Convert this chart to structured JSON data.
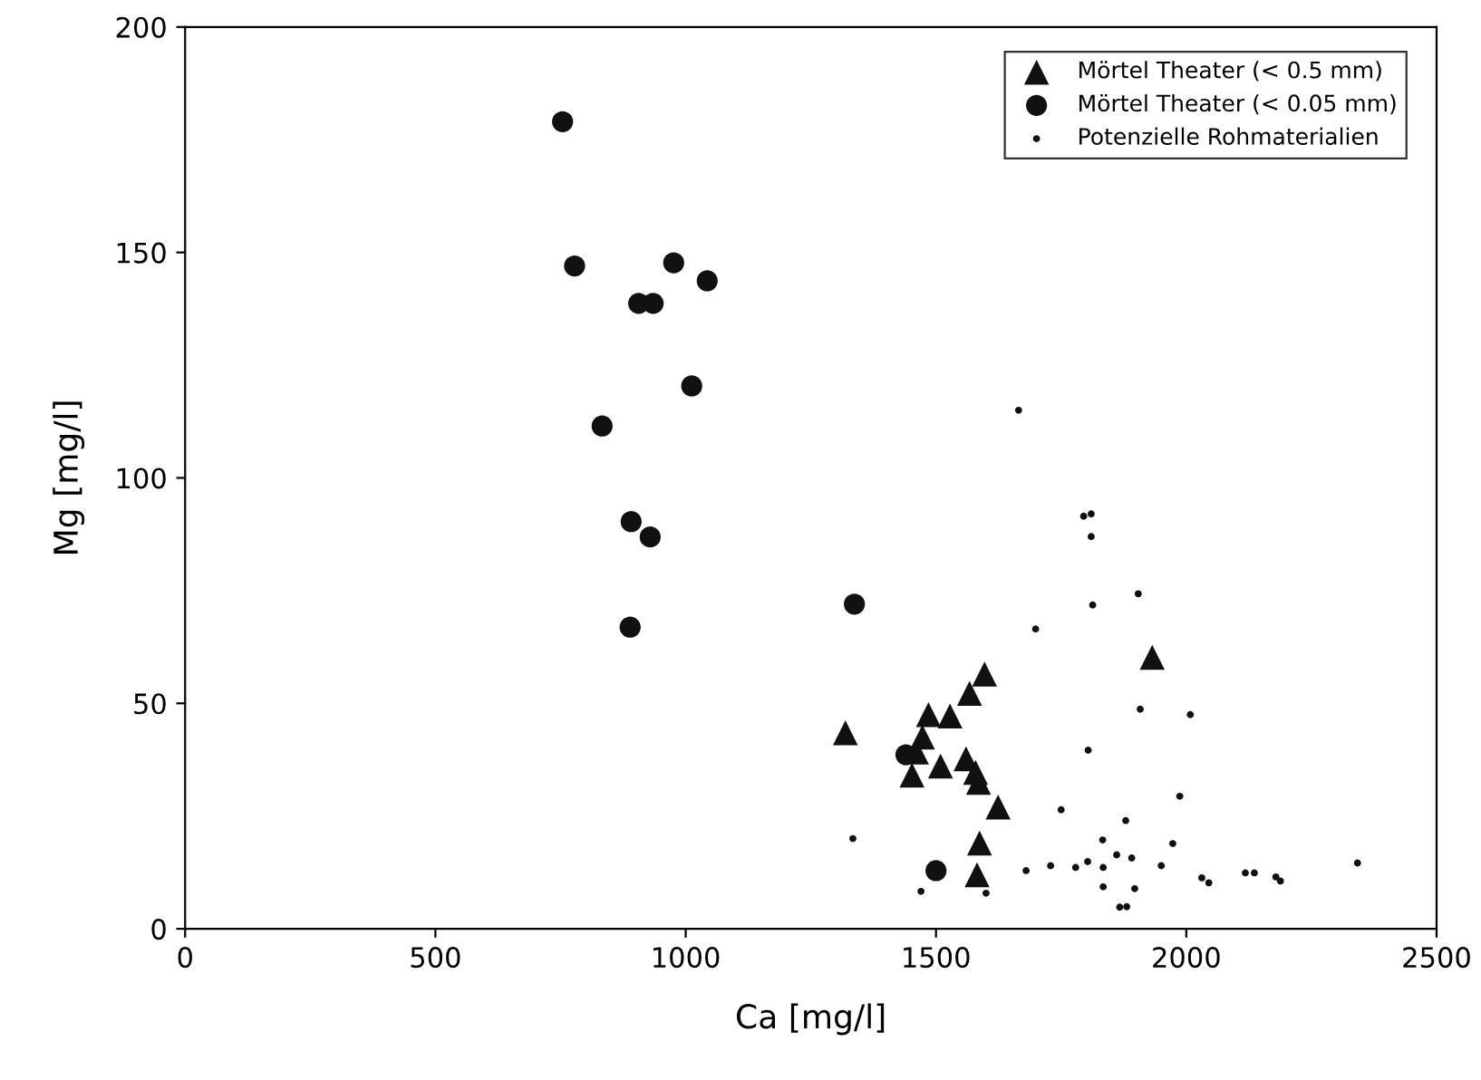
{
  "chart_data": {
    "type": "scatter",
    "xlabel": "Ca [mg/l]",
    "ylabel": "Mg [mg/l]",
    "xlim": [
      0,
      2500
    ],
    "xticks": [
      0,
      500,
      1000,
      1500,
      2000,
      2500
    ],
    "ylim": [
      0,
      200
    ],
    "yticks": [
      0,
      50,
      100,
      150,
      200
    ],
    "grid": false,
    "legend": "top right",
    "series": [
      {
        "name": "Mörtel Theater (< 0.5 mm)",
        "color": "#111111",
        "marker": "triangle",
        "x": [
          1319,
          1597,
          1567,
          1485,
          1528,
          1473,
          1461,
          1452,
          1509,
          1560,
          1579,
          1585,
          1624,
          1587,
          1582,
          1932
        ],
        "values": [
          43.5,
          56.5,
          52.2,
          47.5,
          47.2,
          42.5,
          39.2,
          34.1,
          36.1,
          37.7,
          34.7,
          32.5,
          27,
          19,
          12,
          60.2
        ]
      },
      {
        "name": "Mörtel Theater (< 0.05 mm)",
        "color": "#111111",
        "marker": "circle",
        "x": [
          754,
          778,
          976,
          1043,
          906,
          935,
          1012,
          833,
          891,
          929,
          889,
          1337,
          1440,
          1500
        ],
        "values": [
          179,
          147,
          147.7,
          143.7,
          138.7,
          138.7,
          120.4,
          111.5,
          90.3,
          86.9,
          66.9,
          72,
          38.6,
          12.9
        ]
      },
      {
        "name": "Potenzielle Rohmaterialien",
        "color": "#111111",
        "marker": "circle",
        "x": [
          1665,
          1795,
          1810,
          1810,
          1904,
          1813,
          1699,
          1908,
          1804,
          1750,
          1879,
          1833,
          1973,
          1334,
          1680,
          1729,
          1779,
          1803,
          1834,
          1861,
          1891,
          1950,
          1834,
          1897,
          1867,
          1881,
          1470,
          1600,
          2008,
          1987,
          2031,
          2045,
          2118,
          2136,
          2179,
          2188,
          2342
        ],
        "values": [
          115,
          91.5,
          92,
          87,
          74.3,
          71.8,
          66.5,
          48.7,
          39.6,
          26.4,
          24,
          19.7,
          18.9,
          20,
          12.9,
          14,
          13.6,
          14.9,
          13.6,
          16.4,
          15.7,
          14,
          9.3,
          8.9,
          4.8,
          4.9,
          8.3,
          7.9,
          47.5,
          29.4,
          11.3,
          10.2,
          12.4,
          12.4,
          11.5,
          10.6,
          14.6
        ]
      }
    ]
  }
}
